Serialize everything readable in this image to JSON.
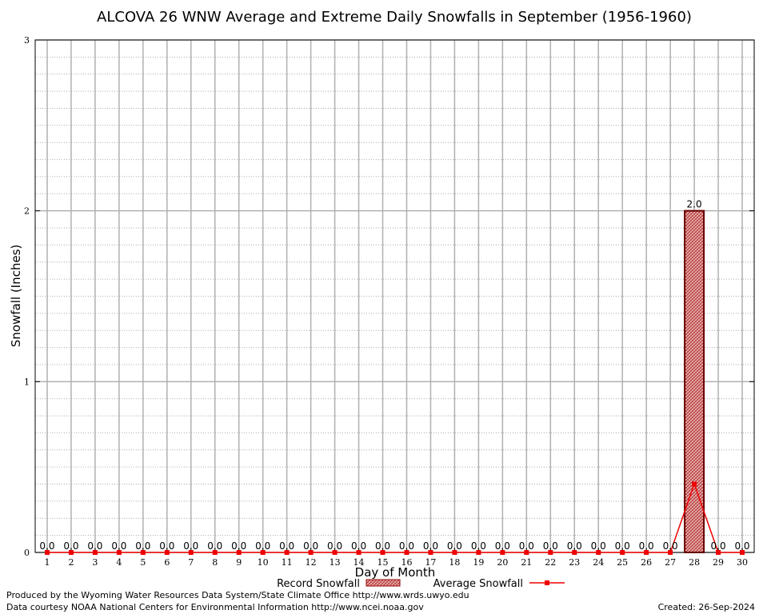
{
  "chart_data": {
    "type": "bar",
    "title": "ALCOVA 26 WNW Average and Extreme Daily Snowfalls in September (1956-1960)",
    "xlabel": "Day of Month",
    "ylabel": "Snowfall (Inches)",
    "ylim": [
      0,
      3
    ],
    "yticks": [
      "0",
      "1",
      "2",
      "3"
    ],
    "categories": [
      "1",
      "2",
      "3",
      "4",
      "5",
      "6",
      "7",
      "8",
      "9",
      "10",
      "11",
      "12",
      "13",
      "14",
      "15",
      "16",
      "17",
      "18",
      "19",
      "20",
      "21",
      "22",
      "23",
      "24",
      "25",
      "26",
      "27",
      "28",
      "29",
      "30"
    ],
    "grid": true,
    "legend_position": "bottom",
    "series": [
      {
        "name": "Record Snowfall",
        "type": "bar",
        "color": "#cc0000",
        "values": [
          0,
          0,
          0,
          0,
          0,
          0,
          0,
          0,
          0,
          0,
          0,
          0,
          0,
          0,
          0,
          0,
          0,
          0,
          0,
          0,
          0,
          0,
          0,
          0,
          0,
          0,
          0,
          2.0,
          0,
          0
        ],
        "labels": [
          "0.0",
          "0.0",
          "0.0",
          "0.0",
          "0.0",
          "0.0",
          "0.0",
          "0.0",
          "0.0",
          "0.0",
          "0.0",
          "0.0",
          "0.0",
          "0.0",
          "0.0",
          "0.0",
          "0.0",
          "0.0",
          "0.0",
          "0.0",
          "0.0",
          "0.0",
          "0.0",
          "0.0",
          "0.0",
          "0.0",
          "0.0",
          "2.0",
          "0.0",
          "0.0"
        ]
      },
      {
        "name": "Average Snowfall",
        "type": "line",
        "color": "#ee0000",
        "values": [
          0,
          0,
          0,
          0,
          0,
          0,
          0,
          0,
          0,
          0,
          0,
          0,
          0,
          0,
          0,
          0,
          0,
          0,
          0,
          0,
          0,
          0,
          0,
          0,
          0,
          0,
          0,
          0.4,
          0,
          0
        ]
      }
    ]
  },
  "footer": {
    "credit_line1": "Produced by the Wyoming Water Resources Data System/State Climate Office http://www.wrds.uwyo.edu",
    "credit_line2": "Data courtesy NOAA National Centers for Environmental Information http://www.ncei.noaa.gov",
    "created": "Created:  26-Sep-2024"
  }
}
